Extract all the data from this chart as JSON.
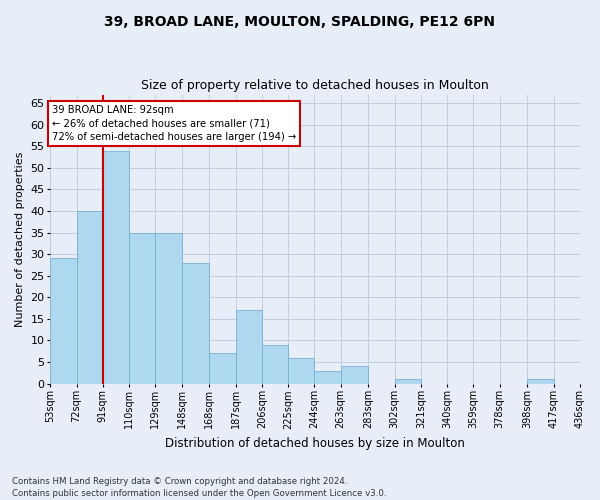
{
  "title1": "39, BROAD LANE, MOULTON, SPALDING, PE12 6PN",
  "title2": "Size of property relative to detached houses in Moulton",
  "xlabel": "Distribution of detached houses by size in Moulton",
  "ylabel": "Number of detached properties",
  "footnote1": "Contains HM Land Registry data © Crown copyright and database right 2024.",
  "footnote2": "Contains public sector information licensed under the Open Government Licence v3.0.",
  "bar_color": "#add8f0",
  "bar_edge_color": "#7ab0d0",
  "highlight_line_color": "#cc0000",
  "annotation_text": "39 BROAD LANE: 92sqm\n← 26% of detached houses are smaller (71)\n72% of semi-detached houses are larger (194) →",
  "bins": [
    53,
    72,
    91,
    110,
    129,
    148,
    168,
    187,
    206,
    225,
    244,
    263,
    283,
    302,
    321,
    340,
    359,
    378,
    398,
    417,
    436
  ],
  "values": [
    29,
    40,
    54,
    35,
    35,
    28,
    7,
    17,
    9,
    6,
    3,
    4,
    0,
    1,
    0,
    0,
    0,
    0,
    1,
    0
  ],
  "ylim": [
    0,
    67
  ],
  "yticks": [
    0,
    5,
    10,
    15,
    20,
    25,
    30,
    35,
    40,
    45,
    50,
    55,
    60,
    65
  ],
  "bg_color": "#e8eef8",
  "grid_color": "#c0cce0"
}
